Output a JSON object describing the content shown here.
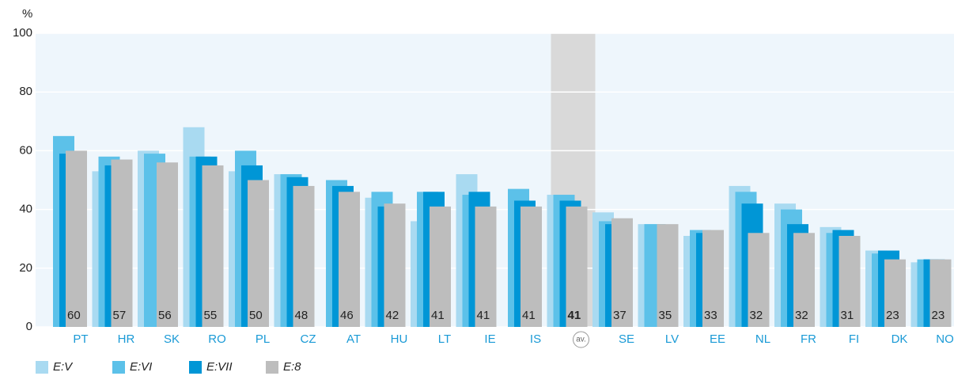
{
  "chart_data": {
    "type": "bar",
    "y_label": "%",
    "categories": [
      "PT",
      "HR",
      "SK",
      "RO",
      "PL",
      "CZ",
      "AT",
      "HU",
      "LT",
      "IE",
      "IS",
      "av.",
      "SE",
      "LV",
      "EE",
      "NL",
      "FR",
      "FI",
      "DK",
      "NO"
    ],
    "highlight": "av.",
    "series": [
      {
        "name": "E:V",
        "color": "#a9daf1",
        "values": [
          null,
          53,
          60,
          68,
          53,
          52,
          null,
          44,
          36,
          52,
          null,
          45,
          39,
          35,
          31,
          48,
          42,
          34,
          26,
          22
        ]
      },
      {
        "name": "E:VI",
        "color": "#5cc1e9",
        "values": [
          65,
          58,
          59,
          58,
          60,
          52,
          50,
          46,
          46,
          45,
          47,
          45,
          36,
          35,
          33,
          46,
          40,
          32,
          25,
          23
        ]
      },
      {
        "name": "E:VII",
        "color": "#0096d6",
        "values": [
          59,
          55,
          null,
          58,
          55,
          51,
          48,
          41,
          46,
          46,
          43,
          43,
          35,
          null,
          32,
          42,
          35,
          33,
          26,
          23
        ]
      },
      {
        "name": "E:8",
        "color": "#bdbdbd",
        "values": [
          60,
          57,
          56,
          55,
          50,
          48,
          46,
          42,
          41,
          41,
          41,
          41,
          37,
          35,
          33,
          32,
          32,
          31,
          23,
          23
        ]
      }
    ],
    "ylim": [
      0,
      100
    ],
    "yticks": [
      0,
      20,
      40,
      60,
      80,
      100
    ],
    "grid": true
  }
}
